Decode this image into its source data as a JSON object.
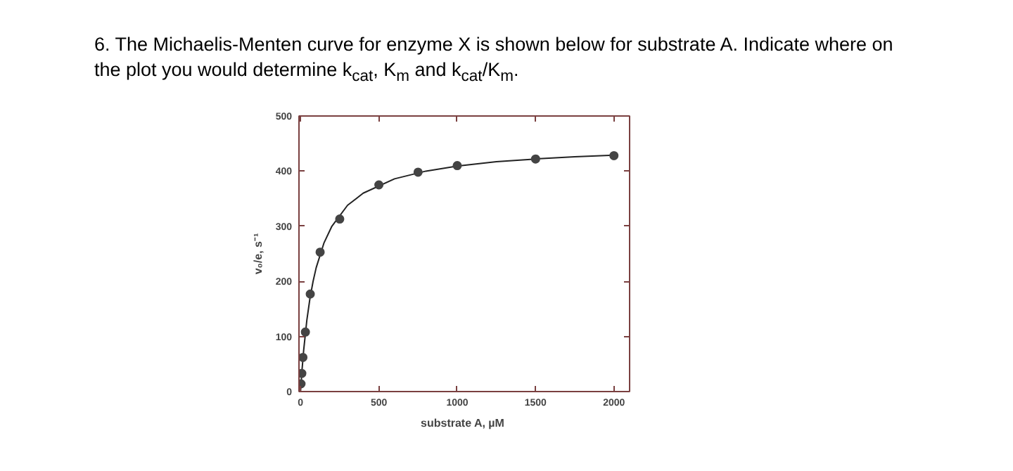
{
  "chart_data": {
    "type": "scatter",
    "title": "6. The Michaelis-Menten curve for enzyme X is shown below for substrate A. Indicate where on the plot you would determine k$_{cat}$, K$_{m}$ and k$_{cat}$/K$_{m}$.",
    "xlabel": "substrate A,  µM",
    "ylabel": "v₀/e, s⁻¹",
    "xlim": [
      -10,
      2100
    ],
    "ylim": [
      0,
      500
    ],
    "xticks": [
      0,
      500,
      1000,
      1500,
      2000
    ],
    "yticks": [
      0,
      100,
      200,
      300,
      400,
      500
    ],
    "grid": false,
    "marker": "circle",
    "series": [
      {
        "type": "line",
        "color": "#222222",
        "line_style": "solid",
        "marker": "none",
        "x": [
          0,
          5,
          10,
          20,
          40,
          60,
          80,
          100,
          150,
          200,
          300,
          400,
          600,
          800,
          1000,
          1250,
          1500,
          1750,
          2000
        ],
        "values": [
          0,
          21,
          41,
          75,
          129,
          169,
          200,
          225,
          270,
          300,
          338,
          360,
          386,
          400,
          409,
          417,
          422,
          426,
          429
        ]
      },
      {
        "color": "#444444",
        "x": [
          3,
          8,
          15,
          31,
          62,
          125,
          250,
          500,
          750,
          1000,
          1500,
          2000
        ],
        "values": [
          14,
          33,
          62,
          108,
          177,
          253,
          313,
          375,
          398,
          410,
          422,
          428
        ]
      }
    ]
  }
}
